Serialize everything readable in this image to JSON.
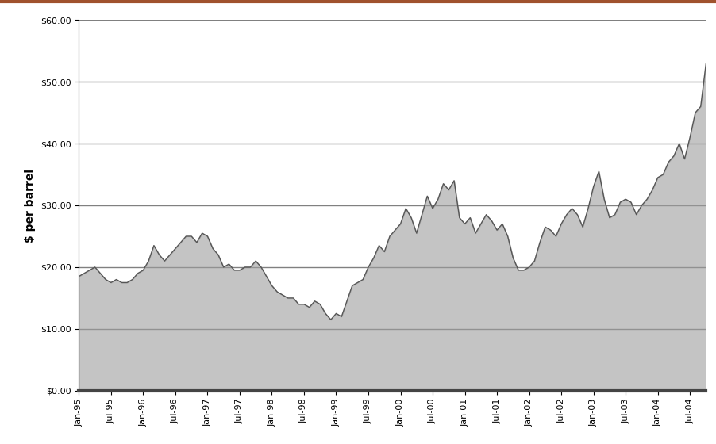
{
  "chart_data": {
    "type": "area",
    "y_label": "$ per barrel",
    "categories": [
      "Jan-95",
      null,
      null,
      null,
      null,
      null,
      "Jul-95",
      null,
      null,
      null,
      null,
      null,
      "Jan-96",
      null,
      null,
      null,
      null,
      null,
      "Jul-96",
      null,
      null,
      null,
      null,
      null,
      "Jan-97",
      null,
      null,
      null,
      null,
      null,
      "Jul-97",
      null,
      null,
      null,
      null,
      null,
      "Jan-98",
      null,
      null,
      null,
      null,
      null,
      "Jul-98",
      null,
      null,
      null,
      null,
      null,
      "Jan-99",
      null,
      null,
      null,
      null,
      null,
      "Jul-99",
      null,
      null,
      null,
      null,
      null,
      "Jan-00",
      null,
      null,
      null,
      null,
      null,
      "Jul-00",
      null,
      null,
      null,
      null,
      null,
      "Jan-01",
      null,
      null,
      null,
      null,
      null,
      "Jul-01",
      null,
      null,
      null,
      null,
      null,
      "Jan-02",
      null,
      null,
      null,
      null,
      null,
      "Jul-02",
      null,
      null,
      null,
      null,
      null,
      "Jan-03",
      null,
      null,
      null,
      null,
      null,
      "Jul-03",
      null,
      null,
      null,
      null,
      null,
      "Jan-04",
      null,
      null,
      null,
      null,
      null,
      "Jul-04",
      null,
      null,
      null
    ],
    "values": [
      18.5,
      19,
      19.5,
      20,
      19,
      18,
      17.5,
      18,
      17.5,
      17.5,
      18,
      19,
      19.5,
      21,
      23.5,
      22,
      21,
      22,
      23,
      24,
      25,
      25,
      24,
      25.5,
      25,
      23,
      22,
      20,
      20.5,
      19.5,
      19.5,
      20,
      20,
      21,
      20,
      18.5,
      17,
      16,
      15.5,
      15,
      15,
      14,
      14,
      13.5,
      14.5,
      14,
      12.5,
      11.5,
      12.5,
      12,
      14.5,
      17,
      17.5,
      18,
      20,
      21.5,
      23.5,
      22.5,
      25,
      26,
      27,
      29.5,
      28,
      25.5,
      28.5,
      31.5,
      29.5,
      31,
      33.5,
      32.5,
      34,
      28,
      27,
      28,
      25.5,
      27,
      28.5,
      27.5,
      26,
      27,
      25,
      21.5,
      19.5,
      19.5,
      20,
      21,
      24,
      26.5,
      26,
      25,
      27,
      28.5,
      29.5,
      28.5,
      26.5,
      29.5,
      33,
      35.5,
      31,
      28,
      28.5,
      30.5,
      31,
      30.5,
      28.5,
      30,
      31,
      32.5,
      34.5,
      35,
      37,
      38,
      40,
      37.5,
      41,
      45,
      46,
      53
    ],
    "color": "#9e9e9e",
    "ylim": [
      0,
      60
    ],
    "yticks": [
      {
        "value": 0,
        "label": "$0.00"
      },
      {
        "value": 10,
        "label": "$10.00"
      },
      {
        "value": 20,
        "label": "$20.00"
      },
      {
        "value": 30,
        "label": "$30.00"
      },
      {
        "value": 40,
        "label": "$40.00"
      },
      {
        "value": 50,
        "label": "$50.00"
      },
      {
        "value": 60,
        "label": "$60.00"
      }
    ],
    "grid": true
  }
}
